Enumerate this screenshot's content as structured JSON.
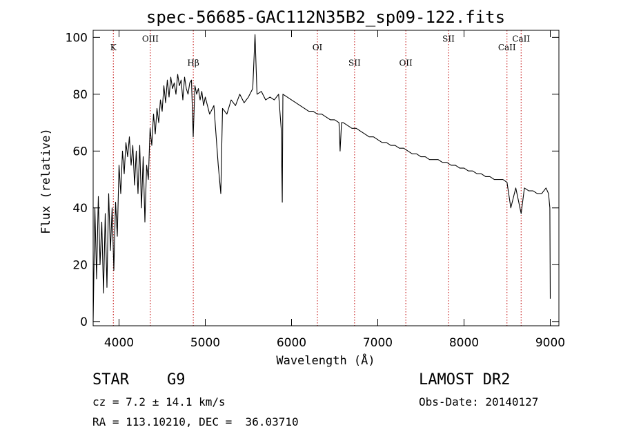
{
  "chart_data": {
    "type": "line",
    "title": "spec-56685-GAC112N35B2_sp09-122.fits",
    "xlabel": "Wavelength (Å)",
    "ylabel": "Flux (relative)",
    "xlim": [
      3700,
      9100
    ],
    "ylim": [
      -1.5,
      102.5
    ],
    "xticks": [
      4000,
      5000,
      6000,
      7000,
      8000,
      9000
    ],
    "yticks": [
      0,
      20,
      40,
      60,
      80,
      100
    ],
    "grid": false,
    "line_color": "#000000",
    "marker_color": "#c00000",
    "lines": [
      {
        "label": "K",
        "x": 3934,
        "label_y": 95.5
      },
      {
        "label": "OIII",
        "x": 4363,
        "label_y": 98.5
      },
      {
        "label": "Hβ",
        "x": 4861,
        "label_y": 90
      },
      {
        "label": "OI",
        "x": 6300,
        "label_y": 95.5
      },
      {
        "label": "SII",
        "x": 6731,
        "label_y": 90
      },
      {
        "label": "OII",
        "x": 7325,
        "label_y": 90
      },
      {
        "label": "SII",
        "x": 7820,
        "label_y": 98.5
      },
      {
        "label": "CaII",
        "x": 8498,
        "label_y": 95.5
      },
      {
        "label": "CaII",
        "x": 8662,
        "label_y": 98.5
      }
    ],
    "series": [
      {
        "x": [
          3700,
          3720,
          3740,
          3760,
          3780,
          3800,
          3820,
          3840,
          3860,
          3880,
          3900,
          3920,
          3940,
          3960,
          3980,
          4000,
          4020,
          4040,
          4060,
          4080,
          4100,
          4120,
          4140,
          4160,
          4180,
          4200,
          4220,
          4240,
          4260,
          4280,
          4300,
          4320,
          4340,
          4360,
          4380,
          4400,
          4420,
          4440,
          4460,
          4480,
          4500,
          4520,
          4540,
          4560,
          4580,
          4600,
          4620,
          4640,
          4660,
          4680,
          4700,
          4720,
          4740,
          4760,
          4780,
          4800,
          4820,
          4840,
          4860,
          4880,
          4900,
          4920,
          4940,
          4960,
          4980,
          5000,
          5050,
          5100,
          5150,
          5180,
          5200,
          5250,
          5300,
          5350,
          5400,
          5450,
          5500,
          5550,
          5577,
          5600,
          5650,
          5700,
          5750,
          5800,
          5850,
          5880,
          5893,
          5900,
          5950,
          6000,
          6050,
          6100,
          6150,
          6200,
          6250,
          6300,
          6350,
          6400,
          6450,
          6500,
          6550,
          6563,
          6580,
          6600,
          6650,
          6700,
          6750,
          6800,
          6850,
          6900,
          6950,
          7000,
          7050,
          7100,
          7150,
          7200,
          7250,
          7300,
          7350,
          7400,
          7450,
          7500,
          7550,
          7600,
          7650,
          7700,
          7750,
          7800,
          7850,
          7900,
          7950,
          8000,
          8050,
          8100,
          8150,
          8200,
          8250,
          8300,
          8350,
          8400,
          8450,
          8498,
          8542,
          8600,
          8662,
          8700,
          8750,
          8800,
          8850,
          8900,
          8950,
          8980,
          8995,
          9000
        ],
        "y": [
          0,
          40,
          15,
          44,
          20,
          35,
          10,
          38,
          12,
          45,
          25,
          40,
          18,
          42,
          30,
          55,
          45,
          60,
          52,
          63,
          58,
          65,
          55,
          62,
          48,
          60,
          45,
          62,
          40,
          58,
          35,
          55,
          50,
          68,
          62,
          73,
          66,
          75,
          70,
          78,
          74,
          83,
          77,
          85,
          79,
          86,
          82,
          84,
          80,
          87,
          83,
          85,
          78,
          86,
          82,
          80,
          84,
          85,
          65,
          83,
          80,
          82,
          78,
          81,
          76,
          79,
          73,
          76,
          55,
          45,
          75,
          73,
          78,
          76,
          80,
          77,
          79,
          82,
          101,
          80,
          81,
          78,
          79,
          78,
          80,
          68,
          42,
          80,
          79,
          78,
          77,
          76,
          75,
          74,
          74,
          73,
          73,
          72,
          71,
          71,
          70,
          60,
          70,
          70,
          69,
          68,
          68,
          67,
          66,
          65,
          65,
          64,
          63,
          63,
          62,
          62,
          61,
          61,
          60,
          59,
          59,
          58,
          58,
          57,
          57,
          57,
          56,
          56,
          55,
          55,
          54,
          54,
          53,
          53,
          52,
          52,
          51,
          51,
          50,
          50,
          50,
          49,
          40,
          47,
          38,
          47,
          46,
          46,
          45,
          45,
          47,
          45,
          40,
          8
        ]
      }
    ]
  },
  "footer": {
    "object_type": "STAR",
    "subclass": "G9",
    "survey": "LAMOST DR2",
    "redshift": "cz = 7.2 ± 14.1 km/s",
    "obs_date": "Obs-Date: 20140127",
    "coordinates": "RA = 113.10210, DEC =  36.03710"
  }
}
